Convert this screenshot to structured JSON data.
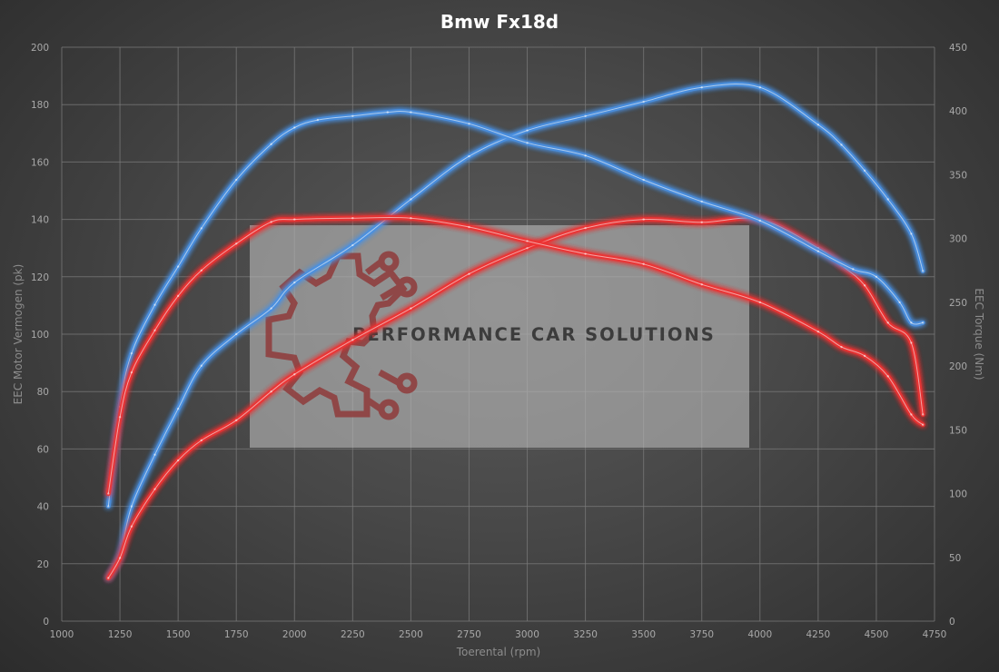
{
  "chart_data": {
    "type": "line",
    "title": "Bmw Fx18d",
    "xlabel": "Toerental (rpm)",
    "ylabel": "EEC Motor Vermogen (pk)",
    "y2label": "EEC Torque (Nm)",
    "xlim": [
      1000,
      4750
    ],
    "ylim": [
      0,
      200
    ],
    "y2lim": [
      0,
      450
    ],
    "x_ticks": [
      "1000",
      "1250",
      "1500",
      "1750",
      "2000",
      "2250",
      "2500",
      "2750",
      "3000",
      "3250",
      "3500",
      "3750",
      "4000",
      "4250",
      "4500",
      "4750"
    ],
    "y_ticks": [
      "0",
      "20",
      "40",
      "60",
      "80",
      "100",
      "120",
      "140",
      "160",
      "180",
      "200"
    ],
    "y2_ticks": [
      "0",
      "50",
      "100",
      "150",
      "200",
      "250",
      "300",
      "350",
      "400",
      "450"
    ],
    "grid": true,
    "watermark": "PERFORMANCE CAR SOLUTIONS",
    "series": [
      {
        "axis": "left",
        "color": "#4a90e2",
        "x": [
          1200,
          1250,
          1300,
          1400,
          1500,
          1600,
          1750,
          1900,
          2000,
          2250,
          2500,
          2750,
          3000,
          3250,
          3500,
          3750,
          4000,
          4250,
          4350,
          4450,
          4550,
          4650,
          4700
        ],
        "y": [
          15,
          23,
          40,
          58,
          74,
          89,
          100,
          109,
          118,
          131,
          147,
          162,
          171,
          176,
          181,
          186,
          186,
          173,
          166,
          157,
          147,
          135,
          122
        ]
      },
      {
        "axis": "left",
        "color": "#ee3333",
        "x": [
          1200,
          1250,
          1300,
          1400,
          1500,
          1600,
          1750,
          1900,
          2000,
          2250,
          2500,
          2750,
          3000,
          3250,
          3500,
          3750,
          4000,
          4250,
          4350,
          4450,
          4550,
          4650,
          4700
        ],
        "y": [
          15,
          22,
          33,
          46,
          56,
          63,
          70,
          80,
          86,
          98,
          109,
          121,
          130,
          137,
          140,
          139,
          140,
          130,
          124,
          117,
          104,
          97,
          72
        ]
      },
      {
        "axis": "right",
        "color": "#4a90e2",
        "x": [
          1200,
          1250,
          1300,
          1400,
          1500,
          1600,
          1750,
          1900,
          2000,
          2100,
          2250,
          2400,
          2500,
          2750,
          3000,
          3250,
          3500,
          3750,
          4000,
          4250,
          4400,
          4500,
          4600,
          4650,
          4700
        ],
        "y": [
          90,
          168,
          210,
          248,
          278,
          308,
          346,
          374,
          387,
          393,
          396,
          399,
          399,
          390,
          375,
          365,
          346,
          329,
          314,
          290,
          276,
          270,
          250,
          234,
          234
        ]
      },
      {
        "axis": "right",
        "color": "#ee3333",
        "x": [
          1200,
          1250,
          1300,
          1400,
          1500,
          1600,
          1750,
          1900,
          2000,
          2250,
          2500,
          2750,
          3000,
          3250,
          3500,
          3750,
          4000,
          4250,
          4350,
          4450,
          4550,
          4650,
          4700
        ],
        "y": [
          100,
          160,
          195,
          228,
          255,
          275,
          296,
          313,
          315,
          316,
          316,
          309,
          298,
          288,
          280,
          264,
          250,
          227,
          215,
          208,
          192,
          162,
          154
        ]
      }
    ]
  }
}
